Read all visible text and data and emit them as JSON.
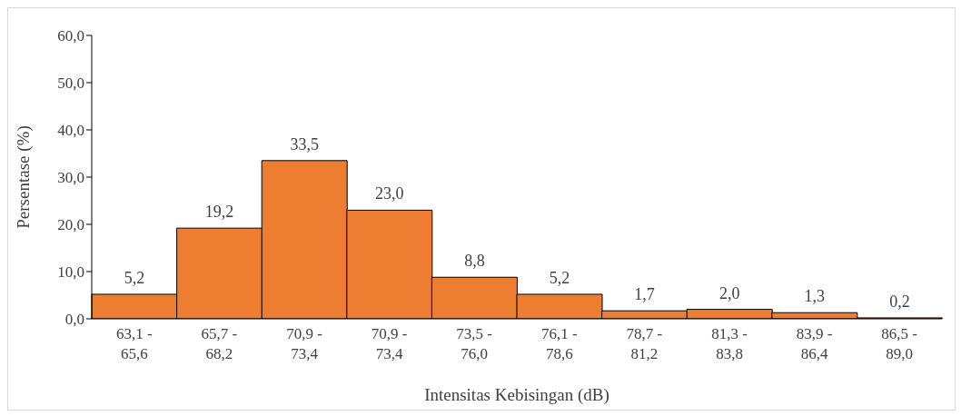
{
  "chart_data": {
    "type": "bar",
    "xlabel": "Intensitas Kebisingan (dB)",
    "ylabel": "Persentase (%)",
    "categories": [
      "63,1 - 65,6",
      "65,7 - 68,2",
      "70,9 - 73,4",
      "70,9 - 73,4",
      "73,5 - 76,0",
      "76,1 - 78,6",
      "78,7 - 81,2",
      "81,3 - 83,8",
      "83,9 - 86,4",
      "86,5 - 89,0"
    ],
    "values": [
      5.2,
      19.2,
      33.5,
      23.0,
      8.8,
      5.2,
      1.7,
      2.0,
      1.3,
      0.2
    ],
    "value_labels": [
      "5,2",
      "19,2",
      "33,5",
      "23,0",
      "8,8",
      "5,2",
      "1,7",
      "2,0",
      "1,3",
      "0,2"
    ],
    "color": "#ed7d31",
    "ylim": [
      0,
      60
    ],
    "yticks": [
      {
        "value": 0,
        "label": "0,0"
      },
      {
        "value": 10,
        "label": "10,0"
      },
      {
        "value": 20,
        "label": "20,0"
      },
      {
        "value": 30,
        "label": "30,0"
      },
      {
        "value": 40,
        "label": "40,0"
      },
      {
        "value": 50,
        "label": "50,0"
      },
      {
        "value": 60,
        "label": "60,0"
      }
    ],
    "grid": false,
    "legend": false
  }
}
